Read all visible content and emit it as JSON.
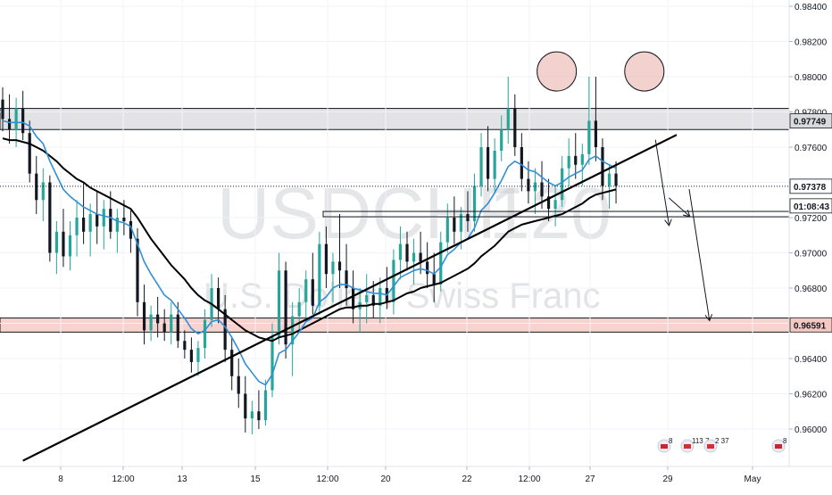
{
  "watermark": {
    "symbol": "USDCHF",
    "interval": "120",
    "description": "U.S. Dollar / Swiss Franc"
  },
  "price_axis": {
    "ticks": [
      "0.98400",
      "0.98200",
      "0.98000",
      "0.97800",
      "0.97600",
      "0.97400",
      "0.97200",
      "0.97000",
      "0.96800",
      "0.96600",
      "0.96400",
      "0.96200",
      "0.96000"
    ]
  },
  "price_labels": {
    "resistance": "0.97749",
    "last": "0.97378",
    "countdown": "01:08:43",
    "support": "0.96591"
  },
  "time_axis": {
    "labels": [
      "8",
      "12:00",
      "13",
      "15",
      "12:00",
      "20",
      "22",
      "12:00",
      "27",
      "29",
      "May"
    ]
  },
  "event_badges": [
    {
      "label": "8",
      "icon": "us-flag-icon"
    },
    {
      "label": "113 7",
      "icon": "ch-flag-icon"
    },
    {
      "label": "2 37",
      "icon": "ch-flag-icon"
    },
    {
      "label": "8",
      "icon": "us-flag-icon"
    }
  ],
  "colors": {
    "up_candle": "#26a69a",
    "down_candle": "#131722",
    "ema_fast": "#2f8fd8",
    "ema_slow": "#000000",
    "resistance_zone": "#d9dadc",
    "support_zone": "#f4c9c1",
    "top_marker": "#ebb3aa"
  },
  "chart_data": {
    "type": "candlestick",
    "symbol": "USDCHF",
    "timeframe": "120",
    "ylim": [
      0.9585,
      0.9845
    ],
    "ohlc": [
      [
        0.9787,
        0.9794,
        0.9769,
        0.9776
      ],
      [
        0.9776,
        0.979,
        0.9762,
        0.977
      ],
      [
        0.977,
        0.9788,
        0.976,
        0.9782
      ],
      [
        0.9782,
        0.9792,
        0.9764,
        0.9768
      ],
      [
        0.9768,
        0.9775,
        0.974,
        0.9745
      ],
      [
        0.9745,
        0.9755,
        0.9722,
        0.973
      ],
      [
        0.973,
        0.9748,
        0.9718,
        0.974
      ],
      [
        0.974,
        0.9744,
        0.9695,
        0.97
      ],
      [
        0.97,
        0.9718,
        0.9688,
        0.9712
      ],
      [
        0.9712,
        0.9725,
        0.9692,
        0.9698
      ],
      [
        0.9698,
        0.9718,
        0.969,
        0.971
      ],
      [
        0.971,
        0.973,
        0.9698,
        0.972
      ],
      [
        0.972,
        0.974,
        0.9705,
        0.9712
      ],
      [
        0.9712,
        0.9728,
        0.9698,
        0.9722
      ],
      [
        0.9722,
        0.9735,
        0.9705,
        0.9715
      ],
      [
        0.9715,
        0.973,
        0.9702,
        0.9725
      ],
      [
        0.9725,
        0.9735,
        0.9708,
        0.9712
      ],
      [
        0.9712,
        0.9725,
        0.97,
        0.972
      ],
      [
        0.972,
        0.973,
        0.971,
        0.9718
      ],
      [
        0.9718,
        0.9724,
        0.97,
        0.9708
      ],
      [
        0.9708,
        0.9714,
        0.9664,
        0.9672
      ],
      [
        0.9672,
        0.9682,
        0.9648,
        0.9656
      ],
      [
        0.9656,
        0.967,
        0.965,
        0.9665
      ],
      [
        0.9665,
        0.9675,
        0.9652,
        0.966
      ],
      [
        0.966,
        0.9668,
        0.965,
        0.9655
      ],
      [
        0.9655,
        0.9672,
        0.9648,
        0.9665
      ],
      [
        0.9665,
        0.9672,
        0.9646,
        0.965
      ],
      [
        0.965,
        0.9656,
        0.964,
        0.9645
      ],
      [
        0.9645,
        0.9652,
        0.9632,
        0.9638
      ],
      [
        0.9638,
        0.965,
        0.963,
        0.9646
      ],
      [
        0.9646,
        0.9668,
        0.964,
        0.9662
      ],
      [
        0.9662,
        0.9688,
        0.9658,
        0.968
      ],
      [
        0.968,
        0.9686,
        0.966,
        0.9668
      ],
      [
        0.9668,
        0.9676,
        0.9638,
        0.9645
      ],
      [
        0.9645,
        0.9652,
        0.9622,
        0.963
      ],
      [
        0.963,
        0.964,
        0.9612,
        0.962
      ],
      [
        0.962,
        0.963,
        0.9598,
        0.9606
      ],
      [
        0.9606,
        0.9616,
        0.9597,
        0.961
      ],
      [
        0.961,
        0.9622,
        0.96,
        0.9605
      ],
      [
        0.9605,
        0.9628,
        0.9602,
        0.9622
      ],
      [
        0.9622,
        0.966,
        0.9618,
        0.9652
      ],
      [
        0.9652,
        0.97,
        0.9648,
        0.969
      ],
      [
        0.969,
        0.9695,
        0.964,
        0.9648
      ],
      [
        0.9648,
        0.9672,
        0.963,
        0.9664
      ],
      [
        0.9664,
        0.968,
        0.9655,
        0.9672
      ],
      [
        0.9672,
        0.969,
        0.9662,
        0.9685
      ],
      [
        0.9685,
        0.97,
        0.9665,
        0.967
      ],
      [
        0.967,
        0.9712,
        0.9665,
        0.9705
      ],
      [
        0.9705,
        0.9715,
        0.968,
        0.9688
      ],
      [
        0.9688,
        0.97,
        0.9672,
        0.9695
      ],
      [
        0.9695,
        0.9722,
        0.968,
        0.969
      ],
      [
        0.969,
        0.9705,
        0.967,
        0.968
      ],
      [
        0.968,
        0.969,
        0.966,
        0.9668
      ],
      [
        0.9668,
        0.968,
        0.9655,
        0.9672
      ],
      [
        0.9672,
        0.9688,
        0.966,
        0.9676
      ],
      [
        0.9676,
        0.9684,
        0.9663,
        0.967
      ],
      [
        0.967,
        0.9686,
        0.966,
        0.968
      ],
      [
        0.968,
        0.9692,
        0.9668,
        0.9672
      ],
      [
        0.9672,
        0.9702,
        0.9665,
        0.9696
      ],
      [
        0.9696,
        0.9715,
        0.9685,
        0.9705
      ],
      [
        0.9705,
        0.9712,
        0.969,
        0.9695
      ],
      [
        0.9695,
        0.9708,
        0.9682,
        0.97
      ],
      [
        0.97,
        0.9712,
        0.9688,
        0.9695
      ],
      [
        0.9695,
        0.9706,
        0.968,
        0.9688
      ],
      [
        0.9688,
        0.97,
        0.9672,
        0.9682
      ],
      [
        0.9682,
        0.9712,
        0.9678,
        0.9706
      ],
      [
        0.9706,
        0.9728,
        0.97,
        0.972
      ],
      [
        0.972,
        0.9732,
        0.9705,
        0.9712
      ],
      [
        0.9712,
        0.9726,
        0.9702,
        0.9722
      ],
      [
        0.9722,
        0.9735,
        0.9712,
        0.9718
      ],
      [
        0.9718,
        0.9745,
        0.9712,
        0.9738
      ],
      [
        0.9738,
        0.9768,
        0.9732,
        0.976
      ],
      [
        0.976,
        0.9772,
        0.9735,
        0.9742
      ],
      [
        0.9742,
        0.9765,
        0.9735,
        0.9758
      ],
      [
        0.9758,
        0.9778,
        0.9752,
        0.977
      ],
      [
        0.977,
        0.98,
        0.9762,
        0.9782
      ],
      [
        0.9782,
        0.979,
        0.9755,
        0.976
      ],
      [
        0.976,
        0.9768,
        0.9735,
        0.9742
      ],
      [
        0.9742,
        0.9752,
        0.9728,
        0.9735
      ],
      [
        0.9735,
        0.9748,
        0.9722,
        0.974
      ],
      [
        0.974,
        0.9752,
        0.9725,
        0.9732
      ],
      [
        0.9732,
        0.9742,
        0.9718,
        0.9725
      ],
      [
        0.9725,
        0.9738,
        0.9715,
        0.973
      ],
      [
        0.973,
        0.9755,
        0.9726,
        0.9748
      ],
      [
        0.9748,
        0.9765,
        0.9738,
        0.9755
      ],
      [
        0.9755,
        0.9768,
        0.9742,
        0.975
      ],
      [
        0.975,
        0.9762,
        0.9738,
        0.9756
      ],
      [
        0.9756,
        0.98,
        0.975,
        0.9775
      ],
      [
        0.9775,
        0.98,
        0.9752,
        0.976
      ],
      [
        0.976,
        0.9765,
        0.973,
        0.9738
      ],
      [
        0.9738,
        0.975,
        0.9725,
        0.9745
      ],
      [
        0.9745,
        0.9752,
        0.9728,
        0.9738
      ]
    ],
    "ema_fast": [
      0.9775,
      0.9774,
      0.9774,
      0.9774,
      0.9772,
      0.9766,
      0.9762,
      0.9752,
      0.9744,
      0.9736,
      0.9732,
      0.9729,
      0.9726,
      0.9724,
      0.9722,
      0.9721,
      0.972,
      0.9718,
      0.9717,
      0.9715,
      0.9705,
      0.9695,
      0.9688,
      0.9682,
      0.9676,
      0.9673,
      0.9668,
      0.9663,
      0.9657,
      0.9654,
      0.9656,
      0.9661,
      0.9662,
      0.9658,
      0.9652,
      0.9645,
      0.9637,
      0.9632,
      0.9627,
      0.9625,
      0.9631,
      0.9643,
      0.9645,
      0.965,
      0.9655,
      0.9661,
      0.9663,
      0.9672,
      0.9675,
      0.968,
      0.9682,
      0.9682,
      0.968,
      0.9679,
      0.9678,
      0.9677,
      0.9677,
      0.9676,
      0.9681,
      0.9686,
      0.9688,
      0.969,
      0.9691,
      0.969,
      0.9688,
      0.9692,
      0.9699,
      0.9702,
      0.9706,
      0.9708,
      0.9714,
      0.9724,
      0.9728,
      0.9734,
      0.9741,
      0.9749,
      0.9752,
      0.975,
      0.9747,
      0.9746,
      0.9743,
      0.974,
      0.9738,
      0.974,
      0.9743,
      0.9745,
      0.9747,
      0.9753,
      0.9755,
      0.9752,
      0.975,
      0.9748
    ],
    "ema_slow": [
      0.9765,
      0.9764,
      0.9764,
      0.9763,
      0.9762,
      0.976,
      0.9758,
      0.9755,
      0.9752,
      0.9748,
      0.9745,
      0.9742,
      0.974,
      0.9737,
      0.9735,
      0.9733,
      0.9731,
      0.9729,
      0.9727,
      0.9725,
      0.972,
      0.9714,
      0.9708,
      0.9703,
      0.9698,
      0.9693,
      0.9689,
      0.9685,
      0.968,
      0.9676,
      0.9673,
      0.9671,
      0.9668,
      0.9665,
      0.9662,
      0.9659,
      0.9656,
      0.9654,
      0.9652,
      0.9651,
      0.965,
      0.9652,
      0.9653,
      0.9654,
      0.9656,
      0.9658,
      0.966,
      0.9662,
      0.9664,
      0.9666,
      0.9668,
      0.9669,
      0.9669,
      0.967,
      0.967,
      0.9671,
      0.9671,
      0.9672,
      0.9673,
      0.9675,
      0.9677,
      0.9678,
      0.968,
      0.9681,
      0.9682,
      0.9683,
      0.9685,
      0.9687,
      0.9689,
      0.9691,
      0.9694,
      0.9698,
      0.9701,
      0.9704,
      0.9708,
      0.9712,
      0.9714,
      0.9716,
      0.9717,
      0.9718,
      0.9719,
      0.972,
      0.9721,
      0.9722,
      0.9724,
      0.9726,
      0.9728,
      0.9731,
      0.9733,
      0.9734,
      0.9735,
      0.9736
    ],
    "levels": {
      "resistance_zone": [
        0.977,
        0.9782
      ],
      "support_zone": [
        0.9655,
        0.9663
      ],
      "last_price": 0.97378,
      "neckline": 0.9722
    },
    "trendline": [
      [
        0.9582,
        3
      ],
      [
        0.9767,
        100
      ]
    ],
    "double_top_markers": [
      0.9803,
      0.9803
    ],
    "projection_path": [
      [
        0.9749,
        95
      ],
      [
        0.9716,
        97
      ],
      [
        0.9721,
        100
      ],
      [
        0.9662,
        103
      ]
    ]
  }
}
